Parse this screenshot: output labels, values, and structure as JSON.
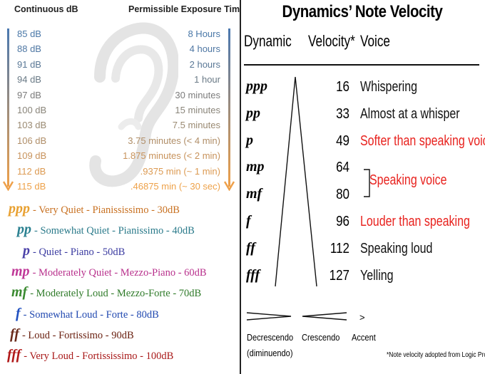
{
  "exposure": {
    "header_db": "Continuous dB",
    "header_time": "Permissible Exposure Time",
    "rows": [
      {
        "db": "85 dB",
        "time": "8 Hours",
        "color": "#4a78a8"
      },
      {
        "db": "88 dB",
        "time": "4 hours",
        "color": "#4f77a3"
      },
      {
        "db": "91 dB",
        "time": "2 hours",
        "color": "#5a7896"
      },
      {
        "db": "94 dB",
        "time": "1 hour",
        "color": "#6a7a86"
      },
      {
        "db": "97 dB",
        "time": "30 minutes",
        "color": "#7c7c7c"
      },
      {
        "db": "100 dB",
        "time": "15 minutes",
        "color": "#8a857a"
      },
      {
        "db": "103 dB",
        "time": "7.5 minutes",
        "color": "#9a8a72"
      },
      {
        "db": "106 dB",
        "time": "3.75 minutes (< 4 min)",
        "color": "#b08e68"
      },
      {
        "db": "109 dB",
        "time": "1.875 minutes (< 2 min)",
        "color": "#c8935c"
      },
      {
        "db": "112 dB",
        "time": ".9375 min (~ 1 min)",
        "color": "#dc9a52"
      },
      {
        "db": "115 dB",
        "time": ".46875 min (~ 30 sec)",
        "color": "#eea24a"
      }
    ],
    "arrow_top_color": "#4a78b0",
    "arrow_bottom_color": "#eea04a"
  },
  "dynamics_list": [
    {
      "symbol": "ppp",
      "text": "- Very Quiet - Pianississimo - 30dB",
      "sym_color": "#e8a030",
      "text_color": "#c87020"
    },
    {
      "symbol": "pp",
      "text": "- Somewhat Quiet - Pianissimo - 40dB",
      "sym_color": "#2a8090",
      "text_color": "#2a7a8a"
    },
    {
      "symbol": "p",
      "text": "- Quiet - Piano - 50dB",
      "sym_color": "#4a40a8",
      "text_color": "#3a3aa0"
    },
    {
      "symbol": "mp",
      "text": "- Moderately Quiet - Mezzo-Piano - 60dB",
      "sym_color": "#c03898",
      "text_color": "#b8308c"
    },
    {
      "symbol": "mf",
      "text": "- Moderately Loud - Mezzo-Forte - 70dB",
      "sym_color": "#3a8a30",
      "text_color": "#2e7a28"
    },
    {
      "symbol": "f",
      "text": "- Somewhat Loud - Forte - 80dB",
      "sym_color": "#2050c0",
      "text_color": "#2048b0"
    },
    {
      "symbol": "ff",
      "text": "- Loud - Fortissimo - 90dB",
      "sym_color": "#6a2a1a",
      "text_color": "#6a2010"
    },
    {
      "symbol": "fff",
      "text": "- Very Loud - Fortississimo - 100dB",
      "sym_color": "#b01818",
      "text_color": "#a81818"
    }
  ],
  "velocity": {
    "title": "Dynamics’ Note Velocity",
    "col_dynamic": "Dynamic",
    "col_velocity": "Velocity*",
    "col_voice": "Voice",
    "rows": [
      {
        "dynamic": "ppp",
        "velocity": "16",
        "voice": "Whispering",
        "voice_color": "#111111"
      },
      {
        "dynamic": "pp",
        "velocity": "33",
        "voice": "Almost at a whisper",
        "voice_color": "#111111"
      },
      {
        "dynamic": "p",
        "velocity": "49",
        "voice": "Softer than speaking voice",
        "voice_color": "#e8221e"
      },
      {
        "dynamic": "mp",
        "velocity": "64",
        "voice": "",
        "voice_color": "#111111"
      },
      {
        "dynamic": "mf",
        "velocity": "80",
        "voice": "",
        "voice_color": "#111111"
      },
      {
        "dynamic": "f",
        "velocity": "96",
        "voice": "Louder than speaking",
        "voice_color": "#e8221e"
      },
      {
        "dynamic": "ff",
        "velocity": "112",
        "voice": "Speaking loud",
        "voice_color": "#111111"
      },
      {
        "dynamic": "fff",
        "velocity": "127",
        "voice": "Yelling",
        "voice_color": "#111111"
      }
    ],
    "bracket_label": "Speaking voice",
    "legend": {
      "decrescendo": "Decrescendo",
      "diminuendo": "(diminuendo)",
      "crescendo": "Crescendo",
      "accent_symbol": ">",
      "accent": "Accent"
    },
    "footnote": "*Note velocity adopted from Logic Pro"
  },
  "icons": {
    "ear": "ear-icon"
  }
}
